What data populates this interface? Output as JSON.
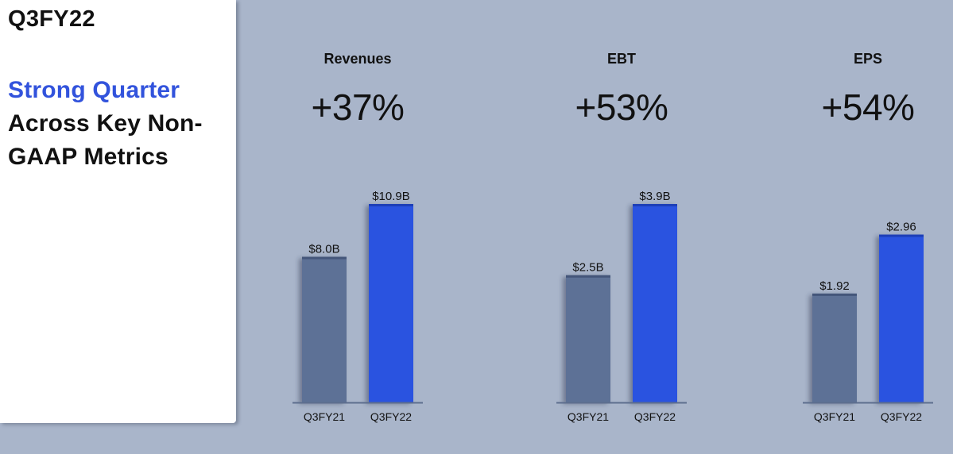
{
  "sidebar": {
    "title": "Q3FY22",
    "headline_accent": "Strong Quarter",
    "headline_rest": "Across Key Non-GAAP Metrics"
  },
  "colors": {
    "prior_bar": "#5d7196",
    "current_bar": "#2952e0",
    "background": "#a9b5ca",
    "accent_text": "#3253dc"
  },
  "chart_data": [
    {
      "type": "bar",
      "title": "Revenues",
      "growth": "+37%",
      "categories": [
        "Q3FY21",
        "Q3FY22"
      ],
      "values": [
        8.0,
        10.9
      ],
      "value_labels": [
        "$8.0B",
        "$10.9B"
      ],
      "ylim": [
        0,
        10.9
      ]
    },
    {
      "type": "bar",
      "title": "EBT",
      "growth": "+53%",
      "categories": [
        "Q3FY21",
        "Q3FY22"
      ],
      "values": [
        2.5,
        3.9
      ],
      "value_labels": [
        "$2.5B",
        "$3.9B"
      ],
      "ylim": [
        0,
        3.9
      ]
    },
    {
      "type": "bar",
      "title": "EPS",
      "growth": "+54%",
      "categories": [
        "Q3FY21",
        "Q3FY22"
      ],
      "values": [
        1.92,
        2.96
      ],
      "value_labels": [
        "$1.92",
        "$2.96"
      ],
      "ylim": [
        0,
        3.5
      ]
    }
  ]
}
